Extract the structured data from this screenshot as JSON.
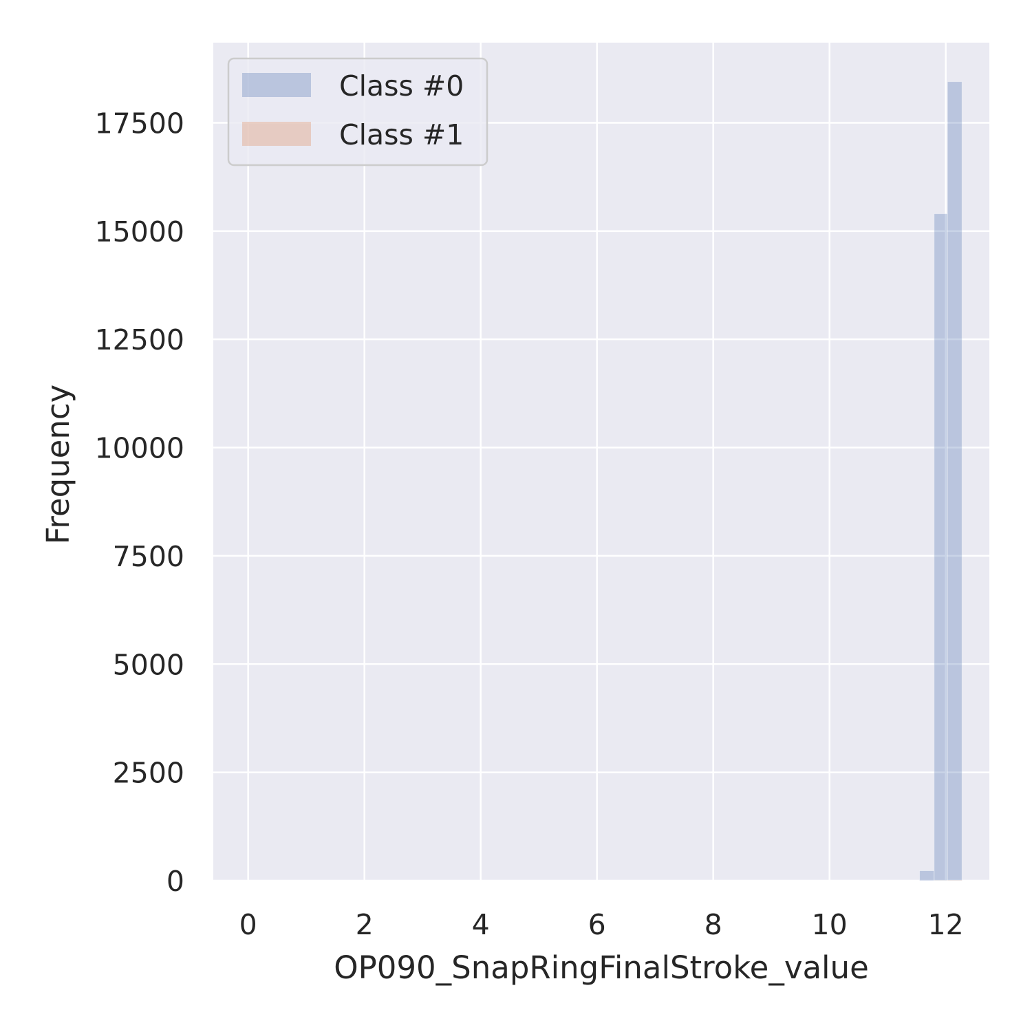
{
  "chart_data": {
    "type": "bar",
    "subtype": "histogram",
    "xlabel": "OP090_SnapRingFinalStroke_value",
    "ylabel": "Frequency",
    "xlim": [
      -0.6,
      12.75
    ],
    "ylim": [
      0,
      19350
    ],
    "xticks": [
      0,
      2,
      4,
      6,
      8,
      10,
      12
    ],
    "yticks": [
      0,
      2500,
      5000,
      7500,
      10000,
      12500,
      15000,
      17500
    ],
    "grid": true,
    "legend_position": "top-left",
    "colors": {
      "background": "#eaeaf2",
      "grid": "#ffffff",
      "class0": "#4c72b0",
      "class1": "#dd8452",
      "text": "#262626"
    },
    "series": [
      {
        "name": "Class #0",
        "color": "#4c72b0",
        "bins": [
          {
            "x0": 11.55,
            "x1": 11.8,
            "value": 230
          },
          {
            "x0": 11.8,
            "x1": 12.03,
            "value": 15400
          },
          {
            "x0": 12.03,
            "x1": 12.28,
            "value": 18450
          }
        ]
      },
      {
        "name": "Class #1",
        "color": "#dd8452",
        "bins": [
          {
            "x0": 11.8,
            "x1": 12.03,
            "value": 5
          },
          {
            "x0": 12.03,
            "x1": 12.28,
            "value": 10
          }
        ]
      }
    ]
  }
}
